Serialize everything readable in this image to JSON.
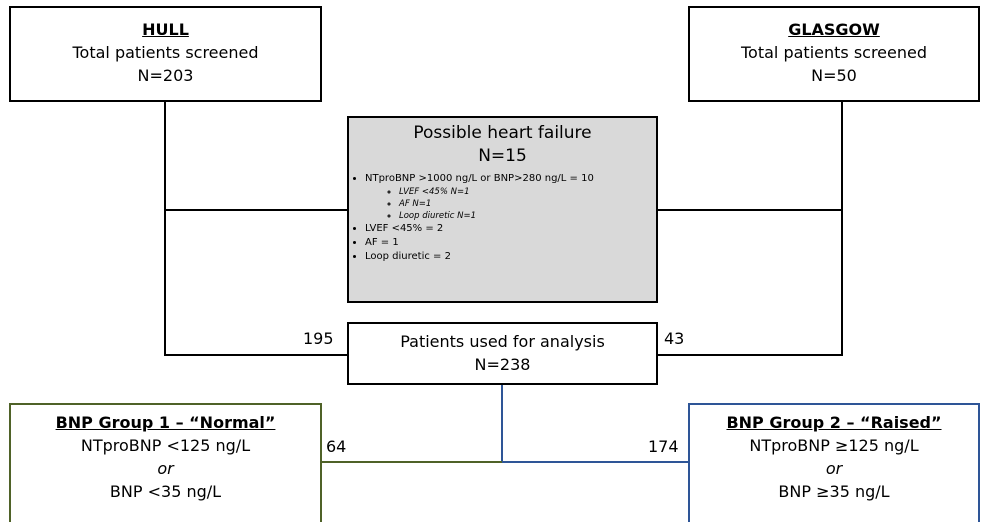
{
  "hull": {
    "title": "HULL",
    "label": "Total patients screened",
    "n": "N=203"
  },
  "glasgow": {
    "title": "GLASGOW",
    "label": "Total patients screened",
    "n": "N=50"
  },
  "possible_hf": {
    "title": "Possible heart failure",
    "n": "N=15",
    "criteria": [
      {
        "text": "NTproBNP >1000 ng/L or BNP>280 ng/L = 10",
        "sub": [
          "LVEF <45% N=1",
          "AF N=1",
          "Loop diuretic N=1"
        ]
      },
      {
        "text": "LVEF <45% = 2"
      },
      {
        "text": "AF = 1"
      },
      {
        "text": "Loop diuretic = 2"
      }
    ]
  },
  "analysis": {
    "label": "Patients used for analysis",
    "n": "N=238"
  },
  "flows": {
    "hull_to_analysis": "195",
    "glasgow_to_analysis": "43",
    "to_group1": "64",
    "to_group2": "174"
  },
  "group1": {
    "title": "BNP Group 1 – “Normal”",
    "line1": "NTproBNP <125 ng/L",
    "or": "or",
    "line2": "BNP <35 ng/L"
  },
  "group2": {
    "title": "BNP Group 2 – “Raised”",
    "line1": "NTproBNP ≥125 ng/L",
    "or": "or",
    "line2": "BNP ≥35 ng/L"
  }
}
